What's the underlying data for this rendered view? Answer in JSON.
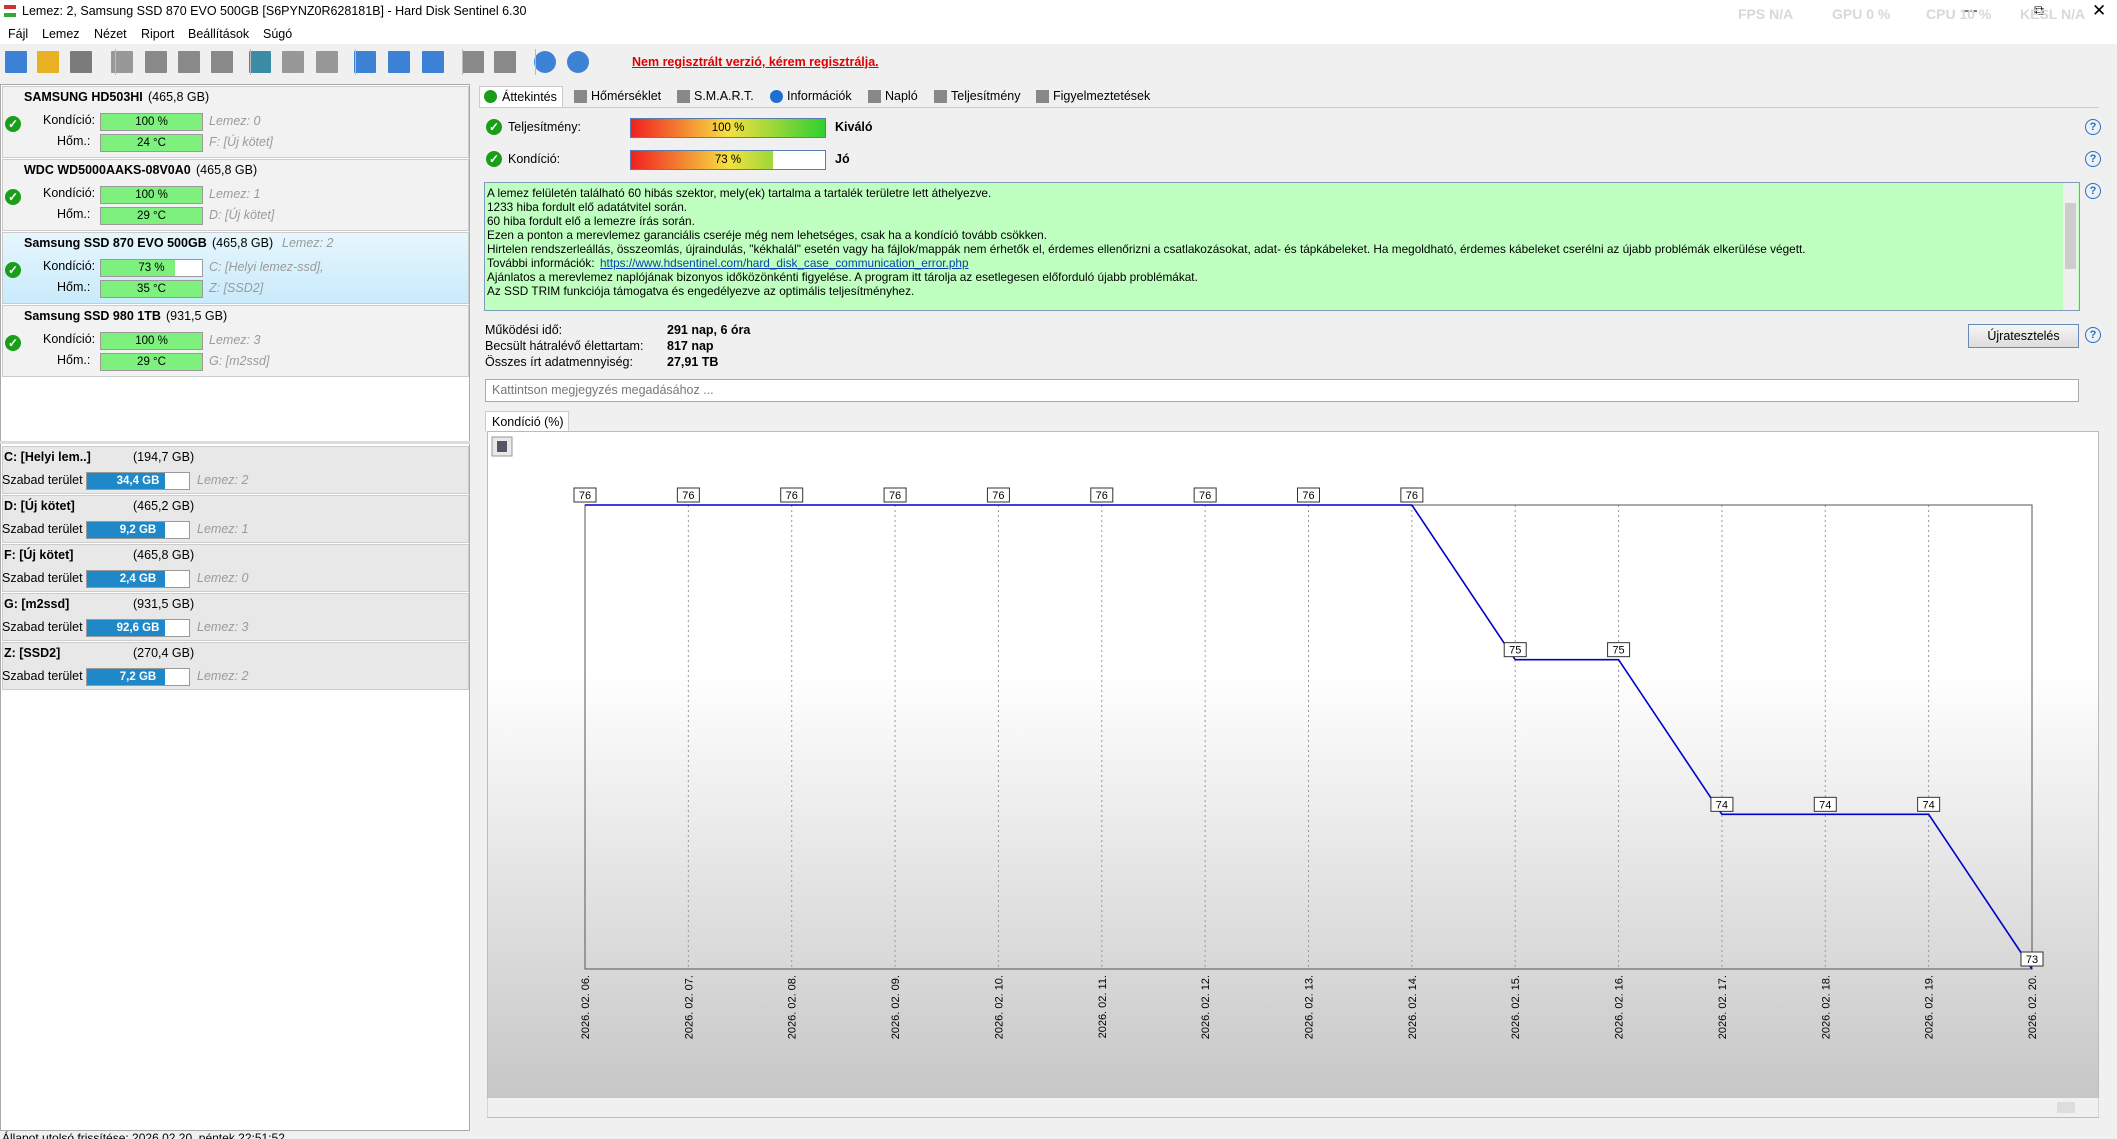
{
  "window": {
    "title": "Lemez: 2, Samsung SSD 870 EVO 500GB [S6PYNZ0R628181B]  -  Hard Disk Sentinel 6.30",
    "overlay": [
      "FPS N/A",
      "GPU 0 %",
      "CPU 10 %",
      "KESL N/A"
    ]
  },
  "menu": [
    "Fájl",
    "Lemez",
    "Nézet",
    "Riport",
    "Beállítások",
    "Súgó"
  ],
  "toolbar": {
    "warning": "Nem regisztrált verzió, kérem regisztrálja."
  },
  "labels": {
    "condition": "Kondíció:",
    "temperature": "Hőm.:",
    "free_space": "Szabad terület"
  },
  "disks": [
    {
      "name": "SAMSUNG HD503HI",
      "size": "(465,8 GB)",
      "condition": {
        "value": 100,
        "label": "100 %"
      },
      "temperature": "24 °C",
      "info1": "Lemez: 0",
      "info2": "F: [Új kötet]"
    },
    {
      "name": "WDC WD5000AAKS-08V0A0",
      "size": "(465,8 GB)",
      "condition": {
        "value": 100,
        "label": "100 %"
      },
      "temperature": "29 °C",
      "info1": "Lemez: 1",
      "info2": "D: [Új kötet]"
    },
    {
      "name": "Samsung SSD 870 EVO 500GB",
      "size": "(465,8 GB)",
      "tag": "Lemez: 2",
      "condition": {
        "value": 73,
        "label": "73 %"
      },
      "temperature": "35 °C",
      "info1": "C: [Helyi lemez-ssd],",
      "info2": "Z: [SSD2]"
    },
    {
      "name": "Samsung SSD 980 1TB",
      "size": "(931,5 GB)",
      "condition": {
        "value": 100,
        "label": "100 %"
      },
      "temperature": "29 °C",
      "info1": "Lemez: 3",
      "info2": "G: [m2ssd]"
    }
  ],
  "volumes": [
    {
      "name": "C: [Helyi lem..]",
      "size": "(194,7 GB)",
      "free": "34,4 GB",
      "disk": "Lemez: 2"
    },
    {
      "name": "D: [Új kötet]",
      "size": "(465,2 GB)",
      "free": "9,2 GB",
      "disk": "Lemez: 1"
    },
    {
      "name": "F: [Új kötet]",
      "size": "(465,8 GB)",
      "free": "2,4 GB",
      "disk": "Lemez: 0"
    },
    {
      "name": "G: [m2ssd]",
      "size": "(931,5 GB)",
      "free": "92,6 GB",
      "disk": "Lemez: 3"
    },
    {
      "name": "Z: [SSD2]",
      "size": "(270,4 GB)",
      "free": "7,2 GB",
      "disk": "Lemez: 2"
    }
  ],
  "tabs": [
    "Áttekintés",
    "Hőmérséklet",
    "S.M.A.R.T.",
    "Információk",
    "Napló",
    "Teljesítmény",
    "Figyelmeztetések"
  ],
  "gauges": [
    {
      "label": "Teljesítmény:",
      "value": 100,
      "value_label": "100 %",
      "verdict": "Kiváló"
    },
    {
      "label": "Kondíció:",
      "value": 73,
      "value_label": "73 %",
      "verdict": "Jó"
    }
  ],
  "message": [
    "A lemez felületén található 60 hibás szektor, mely(ek) tartalma a tartalék területre lett áthelyezve.",
    "1233 hiba fordult elő adatátvitel során.",
    "60 hiba fordult elő a lemezre írás során.",
    "Ezen a ponton a merevlemez garanciális cseréje még nem lehetséges, csak ha a kondíció tovább csökken.",
    "Hirtelen rendszerleállás, összeomlás, újraindulás, \"kékhalál\" esetén vagy ha fájlok/mappák nem érhetők el, érdemes ellenőrizni a csatlakozásokat, adat- és tápkábeleket. Ha megoldható, érdemes kábeleket cserélni az újabb problémák elkerülése végett.",
    {
      "text": "További információk:",
      "link": "https://www.hdsentinel.com/hard_disk_case_communication_error.php"
    },
    "Ajánlatos a merevlemez naplójának bizonyos időközönkénti figyelése. A program itt tárolja az esetlegesen előforduló újabb problémákat.",
    "Az SSD TRIM funkciója támogatva és engedélyezve az optimális teljesítményhez."
  ],
  "stats": [
    {
      "label": "Működési idő:",
      "value": "291 nap, 6 óra"
    },
    {
      "label": "Becsült hátralévő élettartam:",
      "value": "817 nap"
    },
    {
      "label": "Összes írt adatmennyiség:",
      "value": "27,91 TB"
    }
  ],
  "retest_button": "Újratesztelés",
  "note_placeholder": "Kattintson megjegyzés megadásához ...",
  "chart": {
    "type": "line",
    "title": "Kondíció  (%)",
    "color": "#0000cc",
    "categories": [
      "2026. 02. 06.",
      "2026. 02. 07.",
      "2026. 02. 08.",
      "2026. 02. 09.",
      "2026. 02. 10.",
      "2026. 02. 11.",
      "2026. 02. 12.",
      "2026. 02. 13.",
      "2026. 02. 14.",
      "2026. 02. 15.",
      "2026. 02. 16.",
      "2026. 02. 17.",
      "2026. 02. 18.",
      "2026. 02. 19.",
      "2026. 02. 20."
    ],
    "values": [
      76,
      76,
      76,
      76,
      76,
      76,
      76,
      76,
      76,
      75,
      75,
      74,
      74,
      74,
      73
    ],
    "ylim": [
      73,
      76
    ]
  },
  "status": "Állapot utolsó frissítése: 2026.02.20. péntek 22:51:52"
}
